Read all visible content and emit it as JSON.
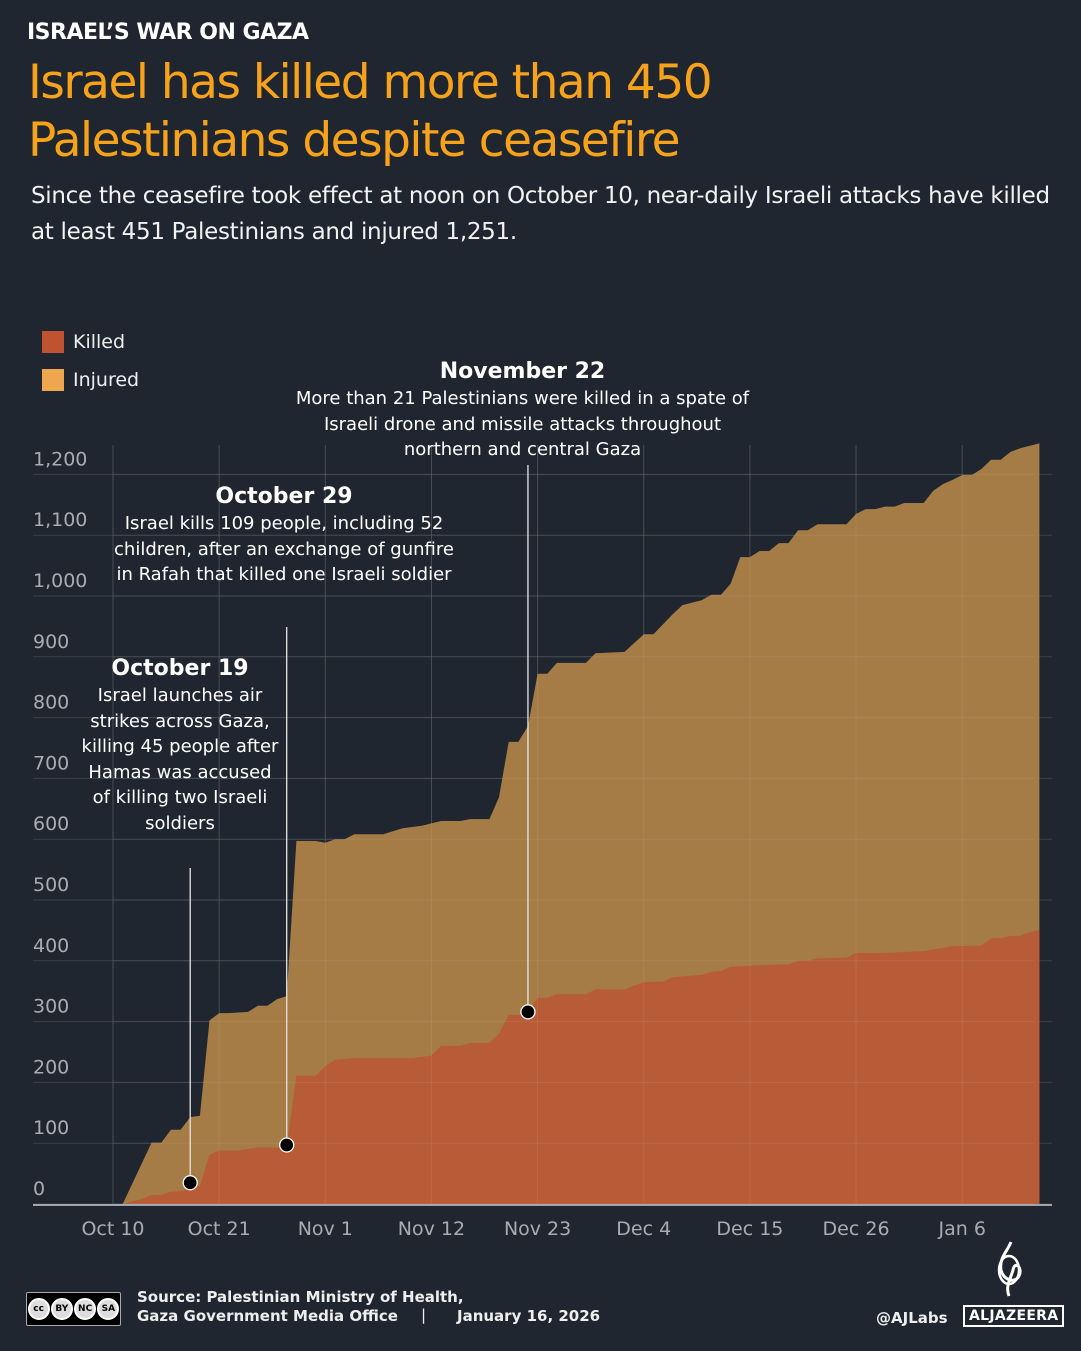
{
  "header": {
    "kicker": "ISRAEL’S WAR ON GAZA",
    "title_line1": "Israel has killed more than 450",
    "title_line2": "Palestinians despite ceasefire",
    "subtitle": "Since the ceasefire took effect at noon on October 10, near-daily Israeli attacks have killed at least 451 Palestinians and injured 1,251."
  },
  "legend": [
    {
      "label": "Killed",
      "color": "#c0532f"
    },
    {
      "label": "Injured",
      "color": "#eea64f"
    }
  ],
  "annotations": [
    {
      "date": "October 19",
      "text": "Israel launches air strikes across Gaza, killing 45 people after Hamas was accused of killing two Israeli soldiers"
    },
    {
      "date": "October 29",
      "text": "Israel kills 109 people, including 52 children, after an exchange of gunfire in Rafah that killed one Israeli soldier"
    },
    {
      "date": "November 22",
      "text": "More than 21 Palestinians were killed in a spate of Israeli drone and missile attacks throughout northern and central Gaza"
    }
  ],
  "chart_data": {
    "type": "area",
    "stacking": "overlapping",
    "title": "",
    "xlabel": "",
    "ylabel": "",
    "ylim": [
      0,
      1250
    ],
    "x_range": [
      "2025-10-10",
      "2026-01-14"
    ],
    "grid": true,
    "legend_position": "top-left",
    "x_ticks": [
      {
        "date": "2025-10-10",
        "label": "Oct 10"
      },
      {
        "date": "2025-10-21",
        "label": "Oct 21"
      },
      {
        "date": "2025-11-01",
        "label": "Nov 1"
      },
      {
        "date": "2025-11-12",
        "label": "Nov 12"
      },
      {
        "date": "2025-11-23",
        "label": "Nov 23"
      },
      {
        "date": "2025-12-04",
        "label": "Dec 4"
      },
      {
        "date": "2025-12-15",
        "label": "Dec 15"
      },
      {
        "date": "2025-12-26",
        "label": "Dec 26"
      },
      {
        "date": "2026-01-06",
        "label": "Jan 6"
      }
    ],
    "y_ticks": [
      {
        "value": 0,
        "label": "0"
      },
      {
        "value": 100,
        "label": "100"
      },
      {
        "value": 200,
        "label": "200"
      },
      {
        "value": 300,
        "label": "300"
      },
      {
        "value": 400,
        "label": "400"
      },
      {
        "value": 500,
        "label": "500"
      },
      {
        "value": 600,
        "label": "600"
      },
      {
        "value": 700,
        "label": "700"
      },
      {
        "value": 800,
        "label": "800"
      },
      {
        "value": 900,
        "label": "900"
      },
      {
        "value": 1000,
        "label": "1,000"
      },
      {
        "value": 1100,
        "label": "1,100"
      },
      {
        "value": 1200,
        "label": "1,200"
      }
    ],
    "series": [
      {
        "name": "Injured",
        "color": "#ab7f47",
        "points": [
          [
            "2025-10-11",
            0
          ],
          [
            "2025-10-14",
            101
          ],
          [
            "2025-10-15",
            101
          ],
          [
            "2025-10-16",
            122
          ],
          [
            "2025-10-17",
            122
          ],
          [
            "2025-10-18",
            143
          ],
          [
            "2025-10-19",
            145
          ],
          [
            "2025-10-20",
            302
          ],
          [
            "2025-10-21",
            314
          ],
          [
            "2025-10-22",
            314
          ],
          [
            "2025-10-24",
            316
          ],
          [
            "2025-10-25",
            326
          ],
          [
            "2025-10-26",
            326
          ],
          [
            "2025-10-27",
            337
          ],
          [
            "2025-10-28",
            342
          ],
          [
            "2025-10-29",
            597
          ],
          [
            "2025-10-31",
            597
          ],
          [
            "2025-11-01",
            594
          ],
          [
            "2025-11-02",
            600
          ],
          [
            "2025-11-03",
            600
          ],
          [
            "2025-11-04",
            608
          ],
          [
            "2025-11-07",
            608
          ],
          [
            "2025-11-09",
            618
          ],
          [
            "2025-11-11",
            622
          ],
          [
            "2025-11-13",
            630
          ],
          [
            "2025-11-15",
            630
          ],
          [
            "2025-11-16",
            633
          ],
          [
            "2025-11-18",
            633
          ],
          [
            "2025-11-19",
            669
          ],
          [
            "2025-11-20",
            760
          ],
          [
            "2025-11-21",
            760
          ],
          [
            "2025-11-22",
            786
          ],
          [
            "2025-11-23",
            872
          ],
          [
            "2025-11-24",
            872
          ],
          [
            "2025-11-25",
            890
          ],
          [
            "2025-11-28",
            890
          ],
          [
            "2025-11-29",
            906
          ],
          [
            "2025-12-02",
            908
          ],
          [
            "2025-12-04",
            937
          ],
          [
            "2025-12-05",
            937
          ],
          [
            "2025-12-07",
            970
          ],
          [
            "2025-12-08",
            985
          ],
          [
            "2025-12-10",
            993
          ],
          [
            "2025-12-11",
            1002
          ],
          [
            "2025-12-12",
            1002
          ],
          [
            "2025-12-13",
            1020
          ],
          [
            "2025-12-14",
            1064
          ],
          [
            "2025-12-15",
            1064
          ],
          [
            "2025-12-16",
            1074
          ],
          [
            "2025-12-17",
            1074
          ],
          [
            "2025-12-18",
            1087
          ],
          [
            "2025-12-19",
            1087
          ],
          [
            "2025-12-20",
            1108
          ],
          [
            "2025-12-21",
            1108
          ],
          [
            "2025-12-22",
            1118
          ],
          [
            "2025-12-25",
            1118
          ],
          [
            "2025-12-26",
            1135
          ],
          [
            "2025-12-27",
            1143
          ],
          [
            "2025-12-28",
            1143
          ],
          [
            "2025-12-29",
            1147
          ],
          [
            "2025-12-30",
            1147
          ],
          [
            "2025-12-31",
            1153
          ],
          [
            "2026-01-02",
            1153
          ],
          [
            "2026-01-03",
            1173
          ],
          [
            "2026-01-04",
            1184
          ],
          [
            "2026-01-05",
            1191
          ],
          [
            "2026-01-06",
            1199
          ],
          [
            "2026-01-07",
            1199
          ],
          [
            "2026-01-08",
            1209
          ],
          [
            "2026-01-09",
            1224
          ],
          [
            "2026-01-10",
            1224
          ],
          [
            "2026-01-11",
            1237
          ],
          [
            "2026-01-12",
            1243
          ],
          [
            "2026-01-13",
            1247
          ],
          [
            "2026-01-14",
            1251
          ]
        ]
      },
      {
        "name": "Killed",
        "color": "#b85b36",
        "points": [
          [
            "2025-10-11",
            0
          ],
          [
            "2025-10-13",
            8
          ],
          [
            "2025-10-14",
            15
          ],
          [
            "2025-10-15",
            15
          ],
          [
            "2025-10-16",
            20
          ],
          [
            "2025-10-17",
            21
          ],
          [
            "2025-10-18",
            26
          ],
          [
            "2025-10-19",
            30
          ],
          [
            "2025-10-20",
            81
          ],
          [
            "2025-10-21",
            88
          ],
          [
            "2025-10-23",
            88
          ],
          [
            "2025-10-25",
            93
          ],
          [
            "2025-10-27",
            93
          ],
          [
            "2025-10-28",
            95
          ],
          [
            "2025-10-29",
            211
          ],
          [
            "2025-10-31",
            211
          ],
          [
            "2025-11-01",
            227
          ],
          [
            "2025-11-02",
            237
          ],
          [
            "2025-11-04",
            240
          ],
          [
            "2025-11-10",
            240
          ],
          [
            "2025-11-12",
            244
          ],
          [
            "2025-11-13",
            260
          ],
          [
            "2025-11-15",
            260
          ],
          [
            "2025-11-16",
            265
          ],
          [
            "2025-11-18",
            265
          ],
          [
            "2025-11-19",
            280
          ],
          [
            "2025-11-20",
            311
          ],
          [
            "2025-11-21",
            311
          ],
          [
            "2025-11-22",
            316
          ],
          [
            "2025-11-23",
            339
          ],
          [
            "2025-11-24",
            339
          ],
          [
            "2025-11-25",
            345
          ],
          [
            "2025-11-28",
            345
          ],
          [
            "2025-11-29",
            353
          ],
          [
            "2025-12-02",
            353
          ],
          [
            "2025-12-04",
            365
          ],
          [
            "2025-12-06",
            366
          ],
          [
            "2025-12-07",
            373
          ],
          [
            "2025-12-10",
            377
          ],
          [
            "2025-12-11",
            382
          ],
          [
            "2025-12-12",
            383
          ],
          [
            "2025-12-13",
            390
          ],
          [
            "2025-12-16",
            393
          ],
          [
            "2025-12-19",
            394
          ],
          [
            "2025-12-20",
            400
          ],
          [
            "2025-12-21",
            400
          ],
          [
            "2025-12-22",
            404
          ],
          [
            "2025-12-25",
            405
          ],
          [
            "2025-12-26",
            413
          ],
          [
            "2025-12-29",
            413
          ],
          [
            "2026-01-02",
            416
          ],
          [
            "2026-01-05",
            424
          ],
          [
            "2026-01-08",
            425
          ],
          [
            "2026-01-09",
            437
          ],
          [
            "2026-01-10",
            437
          ],
          [
            "2026-01-11",
            441
          ],
          [
            "2026-01-12",
            441
          ],
          [
            "2026-01-13",
            447
          ],
          [
            "2026-01-14",
            451
          ]
        ]
      }
    ],
    "markers": [
      {
        "date": "2025-10-18",
        "value": 35
      },
      {
        "date": "2025-10-28",
        "value": 97
      },
      {
        "date": "2025-11-22",
        "value": 316
      }
    ]
  },
  "footer": {
    "source_line1": "Source:  Palestinian Ministry of Health,",
    "source_line2": "Gaza Government Media Office",
    "separator": "|",
    "date": "January 16, 2026",
    "handle": "@AJLabs",
    "brand": "ALJAZEERA",
    "license_labels": [
      "BY",
      "NC",
      "SA"
    ]
  }
}
